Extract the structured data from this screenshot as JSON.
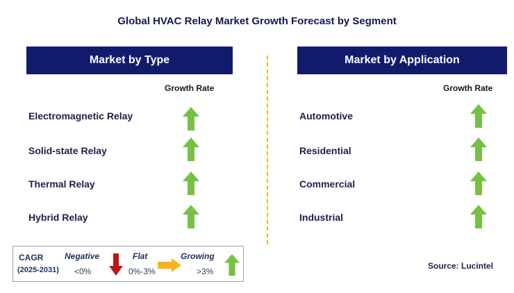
{
  "title": "Global HVAC Relay Market Growth Forecast by Segment",
  "left_panel": {
    "header": "Market by Type",
    "column_label": "Growth Rate",
    "rows": [
      {
        "label": "Electromagnetic Relay",
        "trend": "growing"
      },
      {
        "label": "Solid-state Relay",
        "trend": "growing"
      },
      {
        "label": "Thermal Relay",
        "trend": "growing"
      },
      {
        "label": "Hybrid Relay",
        "trend": "growing"
      }
    ]
  },
  "right_panel": {
    "header": "Market by Application",
    "column_label": "Growth Rate",
    "rows": [
      {
        "label": "Automotive",
        "trend": "growing"
      },
      {
        "label": "Residential",
        "trend": "growing"
      },
      {
        "label": "Commercial",
        "trend": "growing"
      },
      {
        "label": "Industrial",
        "trend": "growing"
      }
    ]
  },
  "legend": {
    "cagr_label": "CAGR",
    "period": "(2025-2031)",
    "negative_label": "Negative",
    "negative_value": "<0%",
    "flat_label": "Flat",
    "flat_value": "0%-3%",
    "growing_label": "Growing",
    "growing_value": ">3%"
  },
  "source": "Source: Lucintel",
  "colors": {
    "header_bg": "#121b6b",
    "growing": "#76c043",
    "negative": "#c0141b",
    "flat": "#f5b41e",
    "divider": "#f5b41e"
  }
}
